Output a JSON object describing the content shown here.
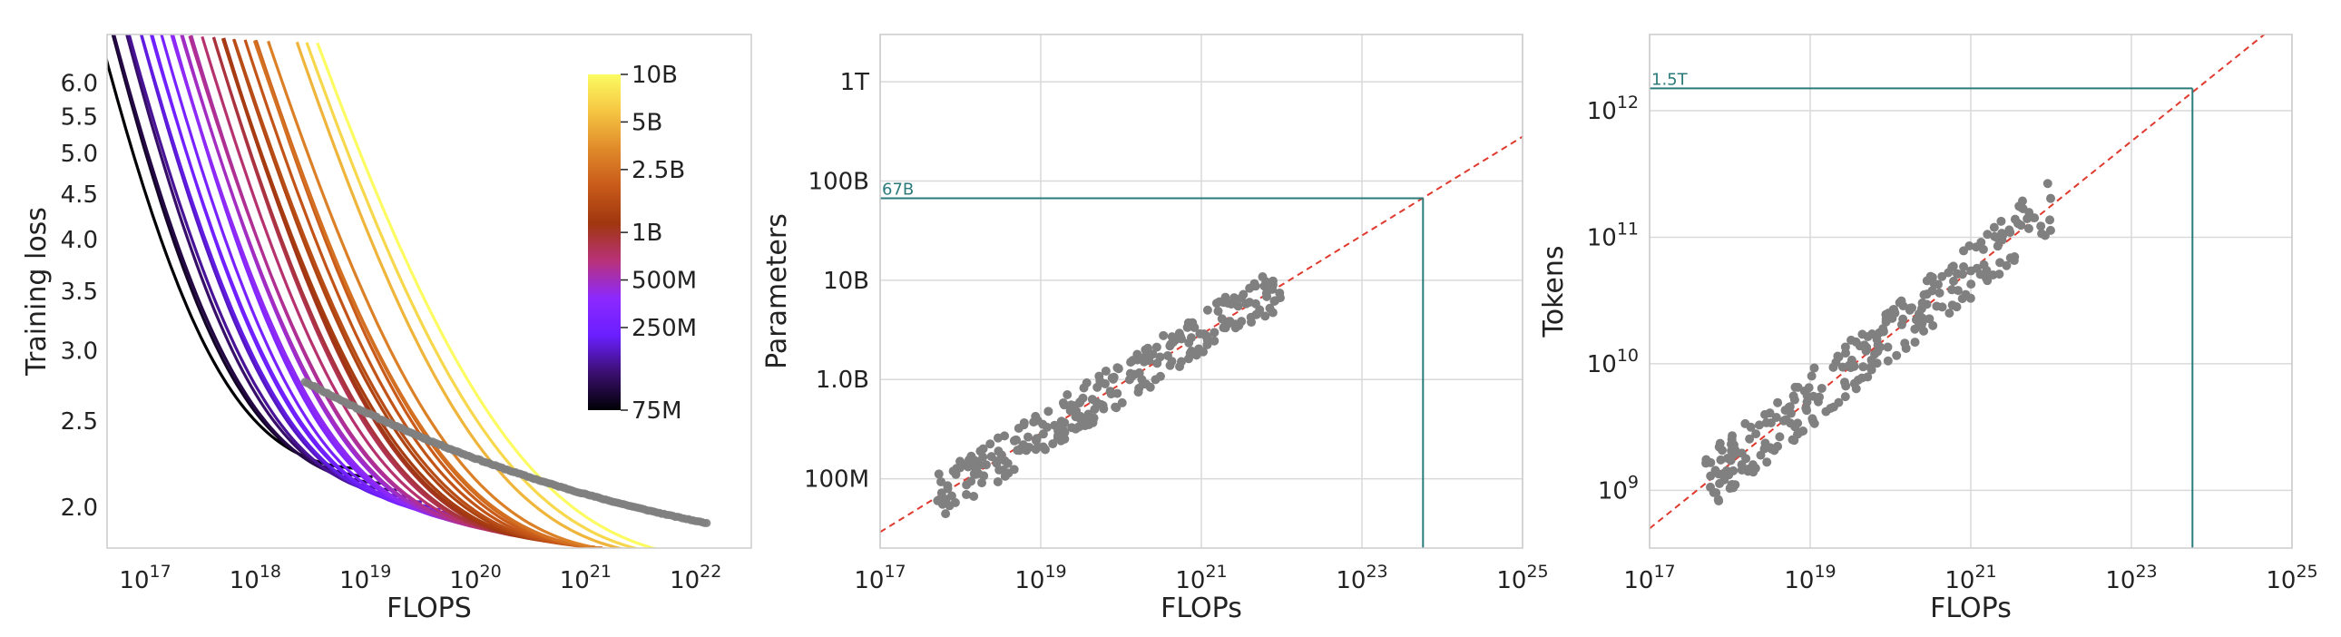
{
  "colors": {
    "frontier": "#808080",
    "fit": "#e03a2f",
    "annotation": "#2b7b7b",
    "grid": "#d9d9d9",
    "colormap": [
      "#000004",
      "#3b0f70",
      "#6a1fff",
      "#8c29ff",
      "#b8327a",
      "#a0360f",
      "#c85a1a",
      "#e08a2a",
      "#f5c542",
      "#fcfc62"
    ]
  },
  "chart_data": [
    {
      "type": "line",
      "xlabel": "FLOPS",
      "ylabel": "Training loss",
      "x_scale": "log",
      "y_scale": "log",
      "xlim": [
        4.5e+16,
        3.2e+22
      ],
      "ylim": [
        1.8,
        6.8
      ],
      "x_ticks": [
        {
          "value": 1e+17,
          "label": "10",
          "exp": "17"
        },
        {
          "value": 1e+18,
          "label": "10",
          "exp": "18"
        },
        {
          "value": 1e+19,
          "label": "10",
          "exp": "19"
        },
        {
          "value": 1e+20,
          "label": "10",
          "exp": "20"
        },
        {
          "value": 1e+21,
          "label": "10",
          "exp": "21"
        },
        {
          "value": 1e+22,
          "label": "10",
          "exp": "22"
        }
      ],
      "y_ticks": [
        {
          "value": 2.0,
          "label": "2.0"
        },
        {
          "value": 2.5,
          "label": "2.5"
        },
        {
          "value": 3.0,
          "label": "3.0"
        },
        {
          "value": 3.5,
          "label": "3.5"
        },
        {
          "value": 4.0,
          "label": "4.0"
        },
        {
          "value": 4.5,
          "label": "4.5"
        },
        {
          "value": 5.0,
          "label": "5.0"
        },
        {
          "value": 5.5,
          "label": "5.5"
        },
        {
          "value": 6.0,
          "label": "6.0"
        }
      ],
      "grid": false,
      "colorbar": {
        "placement": "top-right",
        "scale": "log",
        "range": [
          75000000.0,
          10000000000.0
        ],
        "ticks": [
          {
            "value": 10000000000.0,
            "label": "10B"
          },
          {
            "value": 5000000000.0,
            "label": "5B"
          },
          {
            "value": 2500000000.0,
            "label": "2.5B"
          },
          {
            "value": 1000000000.0,
            "label": "1B"
          },
          {
            "value": 500000000.0,
            "label": "500M"
          },
          {
            "value": 250000000.0,
            "label": "250M"
          },
          {
            "value": 75000000.0,
            "label": "75M"
          }
        ]
      },
      "model_sizes": [
        75000000.0,
        90000000.0,
        105000000.0,
        125000000.0,
        150000000.0,
        175000000.0,
        200000000.0,
        225000000.0,
        250000000.0,
        280000000.0,
        320000000.0,
        360000000.0,
        400000000.0,
        450000000.0,
        500000000.0,
        550000000.0,
        600000000.0,
        700000000.0,
        800000000.0,
        900000000.0,
        1000000000.0,
        1100000000.0,
        1250000000.0,
        1400000000.0,
        1600000000.0,
        1800000000.0,
        2000000000.0,
        2300000000.0,
        2500000000.0,
        3000000000.0,
        5000000000.0,
        7000000000.0,
        10000000000.0
      ]
    },
    {
      "type": "scatter",
      "xlabel": "FLOPs",
      "ylabel": "Parameters",
      "x_scale": "log",
      "y_scale": "log",
      "xlim": [
        1e+17,
        1e+25
      ],
      "ylim": [
        20000000.0,
        3000000000000.0
      ],
      "x_ticks": [
        {
          "value": 1e+17,
          "label": "10",
          "exp": "17"
        },
        {
          "value": 1e+19,
          "label": "10",
          "exp": "19"
        },
        {
          "value": 1e+21,
          "label": "10",
          "exp": "21"
        },
        {
          "value": 1e+23,
          "label": "10",
          "exp": "23"
        },
        {
          "value": 1e+25,
          "label": "10",
          "exp": "25"
        }
      ],
      "y_ticks": [
        {
          "value": 100000000.0,
          "label": "100M"
        },
        {
          "value": 1000000000.0,
          "label": "1.0B"
        },
        {
          "value": 10000000000.0,
          "label": "10B"
        },
        {
          "value": 100000000000.0,
          "label": "100B"
        },
        {
          "value": 1000000000000.0,
          "label": "1T"
        }
      ],
      "grid": true,
      "fit": {
        "x": [
          1e+17,
          1e+25
        ],
        "y": [
          29000000.0,
          280000000000.0
        ]
      },
      "annotation": {
        "label": "67B",
        "x": 5.76e+23,
        "y": 67000000000.0
      },
      "scatter_range": {
        "x": [
          5e+17,
          1e+22
        ],
        "y_fit_ratio_spread": 0.45
      }
    },
    {
      "type": "scatter",
      "xlabel": "FLOPs",
      "ylabel": "Tokens",
      "x_scale": "log",
      "y_scale": "log",
      "xlim": [
        1e+17,
        1e+25
      ],
      "ylim": [
        350000000.0,
        4000000000000.0
      ],
      "x_ticks": [
        {
          "value": 1e+17,
          "label": "10",
          "exp": "17"
        },
        {
          "value": 1e+19,
          "label": "10",
          "exp": "19"
        },
        {
          "value": 1e+21,
          "label": "10",
          "exp": "21"
        },
        {
          "value": 1e+23,
          "label": "10",
          "exp": "23"
        },
        {
          "value": 1e+25,
          "label": "10",
          "exp": "25"
        }
      ],
      "y_ticks": [
        {
          "value": 1000000000.0,
          "label": "10",
          "exp": "9"
        },
        {
          "value": 10000000000.0,
          "label": "10",
          "exp": "10"
        },
        {
          "value": 100000000000.0,
          "label": "10",
          "exp": "11"
        },
        {
          "value": 1000000000000.0,
          "label": "10",
          "exp": "12"
        }
      ],
      "grid": true,
      "fit": {
        "x": [
          1e+17,
          1e+25
        ],
        "y": [
          500000000.0,
          6000000000000.0
        ]
      },
      "annotation": {
        "label": "1.5T",
        "x": 5.76e+23,
        "y": 1500000000000.0
      },
      "scatter_range": {
        "x": [
          5e+17,
          1e+22
        ],
        "y_fit_ratio_spread": 0.45
      }
    }
  ]
}
